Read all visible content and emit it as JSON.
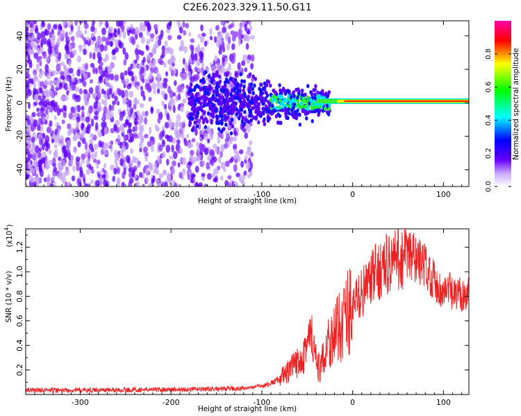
{
  "figure": {
    "title": "C2E6.2023.329.11.50.G11"
  },
  "chart_data": [
    {
      "type": "heatmap",
      "xlabel": "Height of straight line (km)",
      "ylabel": "Frequency (Hz)",
      "xlim": [
        -360,
        128
      ],
      "ylim": [
        -50,
        49
      ],
      "x_ticks": [
        -300,
        -200,
        -100,
        0,
        100
      ],
      "x_tick_labels": [
        "-300",
        "-200",
        "-100",
        "0",
        "100"
      ],
      "y_ticks": [
        -40,
        -20,
        0,
        20,
        40
      ],
      "y_tick_labels": [
        "-40",
        "-20",
        "0",
        "20",
        "40"
      ],
      "grid": false,
      "colorbar": {
        "label": "Normalized spectral amplitude",
        "range": [
          0,
          1
        ],
        "ticks": [
          0,
          0.2,
          0.4,
          0.6,
          0.8
        ],
        "tick_labels": [
          "0.0",
          "0.2",
          "0.4",
          "0.6",
          "0.8"
        ],
        "colormap": [
          "#ffffff",
          "#6600ff",
          "#0000ff",
          "#00ffff",
          "#00ff00",
          "#ffff00",
          "#ff0000",
          "#ff00aa"
        ]
      },
      "features": [
        {
          "feature": "diffuse noise",
          "x_range": [
            -360,
            -110
          ],
          "freq_range": [
            -50,
            49
          ],
          "amplitude": 0.08
        },
        {
          "feature": "spread signal",
          "x_range": [
            -180,
            -25
          ],
          "freq_range": [
            -15,
            15
          ],
          "amplitude": 0.3
        },
        {
          "feature": "narrow carrier line",
          "x_range": [
            -40,
            128
          ],
          "center_freq": 1,
          "amplitude": 1.0
        }
      ]
    },
    {
      "type": "line",
      "title": "",
      "xlabel": "Height of straight line (km)",
      "ylabel": "SNR (10 * v/v)",
      "scale_label": "(x10",
      "scale_exponent": "4",
      "scale_close": ")",
      "xlim": [
        -360,
        128
      ],
      "ylim": [
        0,
        13500
      ],
      "x_ticks": [
        -300,
        -200,
        -100,
        0,
        100
      ],
      "x_tick_labels": [
        "-300",
        "-200",
        "-100",
        "0",
        "100"
      ],
      "y_ticks": [
        2000,
        4000,
        6000,
        8000,
        10000,
        12000
      ],
      "y_tick_labels": [
        "0.2",
        "0.4",
        "0.6",
        "0.8",
        "1.0",
        "1.2"
      ],
      "grid": false,
      "color": "#ee2222",
      "x": [
        -360,
        -300,
        -250,
        -200,
        -150,
        -120,
        -100,
        -90,
        -80,
        -70,
        -60,
        -55,
        -50,
        -45,
        -40,
        -35,
        -30,
        -25,
        -20,
        -15,
        -10,
        -5,
        0,
        5,
        10,
        15,
        20,
        25,
        30,
        40,
        50,
        60,
        70,
        80,
        90,
        95,
        100,
        105,
        110,
        115,
        120,
        128
      ],
      "y": [
        350,
        350,
        380,
        400,
        450,
        500,
        700,
        900,
        1300,
        1900,
        2600,
        3500,
        4200,
        4600,
        2500,
        2000,
        4000,
        4600,
        4800,
        5400,
        6200,
        6800,
        7200,
        7800,
        8300,
        8700,
        9300,
        9800,
        10200,
        10700,
        11100,
        11200,
        11000,
        10500,
        9300,
        8700,
        8200,
        8800,
        8000,
        8100,
        8200,
        8300
      ]
    }
  ]
}
